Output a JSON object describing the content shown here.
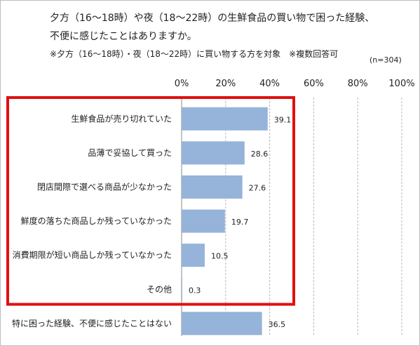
{
  "header": {
    "title_line1": "夕方（16～18時）や夜（18～22時）の生鮮食品の買い物で困った経験、",
    "title_line2": "不便に感じたことはありますか。",
    "note": "※夕方（16～18時）・夜（18～22時）に買い物する方を対象　※複数回答可",
    "sample_size": "(n=304)"
  },
  "colors": {
    "bar": "#96b3d9",
    "highlight_box": "#e01010",
    "grid": "#b8b8b8"
  },
  "chart_data": {
    "type": "bar",
    "orientation": "horizontal",
    "xlim": [
      0,
      100
    ],
    "x_ticks": [
      "0%",
      "20%",
      "40%",
      "60%",
      "80%",
      "100%"
    ],
    "grid": true,
    "categories": [
      "生鮮食品が売り切れていた",
      "品薄で妥協して買った",
      "閉店間際で選べる商品が少なかった",
      "鮮度の落ちた商品しか残っていなかった",
      "消費期限が短い商品しか残っていなかった",
      "その他",
      "特に困った経験、不便に感じたことはない"
    ],
    "values": [
      39.1,
      28.6,
      27.6,
      19.7,
      10.5,
      0.3,
      36.5
    ],
    "value_labels": [
      "39.1",
      "28.6",
      "27.6",
      "19.7",
      "10.5",
      "0.3",
      "36.5"
    ],
    "highlighted_categories": [
      0,
      1,
      2,
      3,
      4,
      5
    ]
  }
}
